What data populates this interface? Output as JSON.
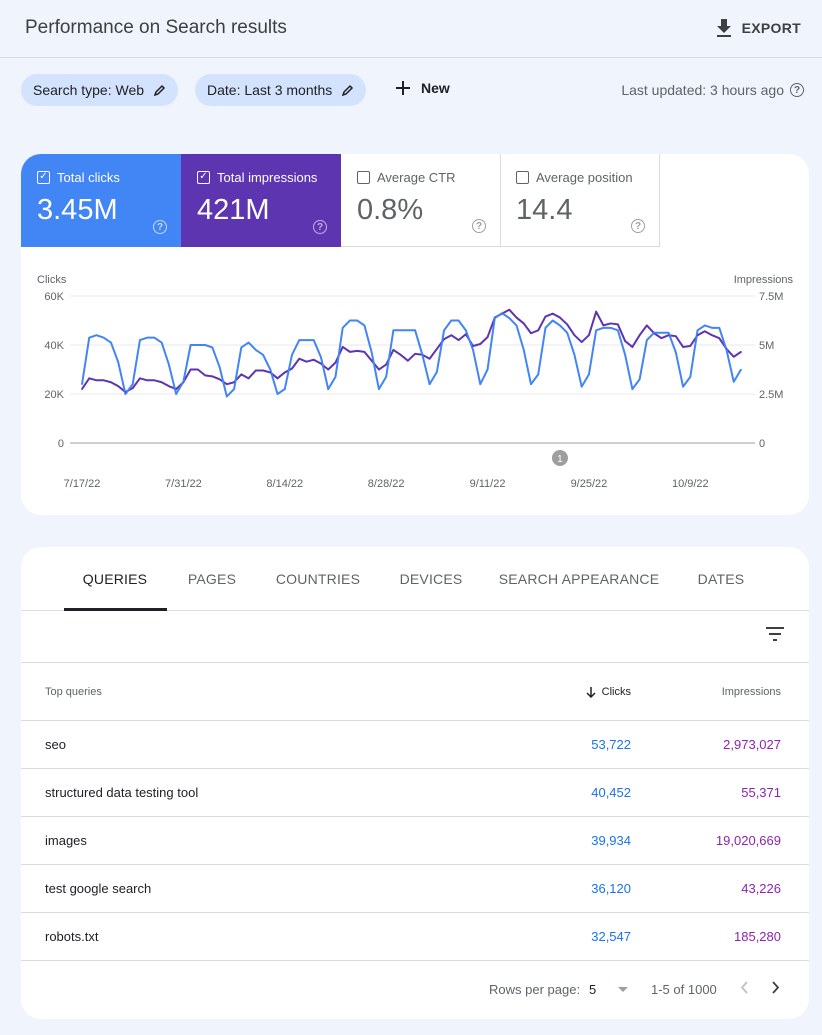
{
  "header": {
    "title": "Performance on Search results",
    "export_label": "EXPORT"
  },
  "filters": {
    "search_type": "Search type: Web",
    "date": "Date: Last 3 months",
    "new_label": "New",
    "last_updated": "Last updated: 3 hours ago"
  },
  "metrics": [
    {
      "label": "Total clicks",
      "value": "3.45M",
      "checked": true,
      "color": "#4285f4"
    },
    {
      "label": "Total impressions",
      "value": "421M",
      "checked": true,
      "color": "#5e35b1"
    },
    {
      "label": "Average CTR",
      "value": "0.8%",
      "checked": false
    },
    {
      "label": "Average position",
      "value": "14.4",
      "checked": false
    }
  ],
  "chart_data": {
    "type": "line",
    "ylabel_left": "Clicks",
    "ylabel_right": "Impressions",
    "yticks_left": [
      "0",
      "20K",
      "40K",
      "60K"
    ],
    "ylim_left": [
      0,
      60000
    ],
    "yticks_right": [
      "0",
      "2.5M",
      "5M",
      "7.5M"
    ],
    "ylim_right": [
      0,
      7500000
    ],
    "xtick_labels": [
      "7/17/22",
      "7/31/22",
      "8/14/22",
      "8/28/22",
      "9/11/22",
      "9/25/22",
      "10/9/22"
    ],
    "grid": true,
    "annotations": [
      {
        "label": "1",
        "date": "9/21/22"
      }
    ],
    "x": [
      "7/17/22",
      "7/18/22",
      "7/19/22",
      "7/20/22",
      "7/21/22",
      "7/22/22",
      "7/23/22",
      "7/24/22",
      "7/25/22",
      "7/26/22",
      "7/27/22",
      "7/28/22",
      "7/29/22",
      "7/30/22",
      "7/31/22",
      "8/1/22",
      "8/2/22",
      "8/3/22",
      "8/4/22",
      "8/5/22",
      "8/6/22",
      "8/7/22",
      "8/8/22",
      "8/9/22",
      "8/10/22",
      "8/11/22",
      "8/12/22",
      "8/13/22",
      "8/14/22",
      "8/15/22",
      "8/16/22",
      "8/17/22",
      "8/18/22",
      "8/19/22",
      "8/20/22",
      "8/21/22",
      "8/22/22",
      "8/23/22",
      "8/24/22",
      "8/25/22",
      "8/26/22",
      "8/27/22",
      "8/28/22",
      "8/29/22",
      "8/30/22",
      "8/31/22",
      "9/1/22",
      "9/2/22",
      "9/3/22",
      "9/4/22",
      "9/5/22",
      "9/6/22",
      "9/7/22",
      "9/8/22",
      "9/9/22",
      "9/10/22",
      "9/11/22",
      "9/12/22",
      "9/13/22",
      "9/14/22",
      "9/15/22",
      "9/16/22",
      "9/17/22",
      "9/18/22",
      "9/19/22",
      "9/20/22",
      "9/21/22",
      "9/22/22",
      "9/23/22",
      "9/24/22",
      "9/25/22",
      "9/26/22",
      "9/27/22",
      "9/28/22",
      "9/29/22",
      "9/30/22",
      "10/1/22",
      "10/2/22",
      "10/3/22",
      "10/4/22",
      "10/5/22",
      "10/6/22",
      "10/7/22",
      "10/8/22",
      "10/9/22",
      "10/10/22",
      "10/11/22",
      "10/12/22",
      "10/13/22",
      "10/14/22",
      "10/15/22",
      "10/16/22"
    ],
    "series": [
      {
        "name": "Clicks",
        "axis": "left",
        "color": "#4285f4",
        "values": [
          24000,
          43000,
          44000,
          43000,
          41000,
          33000,
          20000,
          24000,
          42000,
          43000,
          43000,
          41000,
          32000,
          20000,
          25000,
          40000,
          40000,
          40000,
          39000,
          31000,
          19000,
          22000,
          39000,
          41000,
          38000,
          36000,
          30000,
          20000,
          22000,
          36000,
          42000,
          42000,
          42000,
          35000,
          22000,
          27000,
          47000,
          50000,
          50000,
          48000,
          37000,
          22000,
          27000,
          46000,
          46000,
          46000,
          46000,
          36000,
          24000,
          29000,
          46000,
          50000,
          50000,
          46000,
          38000,
          24000,
          30000,
          51000,
          53000,
          51000,
          48000,
          38000,
          24000,
          28000,
          47000,
          50000,
          48000,
          45000,
          36000,
          23000,
          28000,
          46000,
          47000,
          47000,
          46000,
          36000,
          22000,
          26000,
          42000,
          45000,
          45000,
          45000,
          37000,
          23000,
          27000,
          46000,
          48000,
          47000,
          47000,
          38000,
          25000,
          30000
        ]
      },
      {
        "name": "Impressions",
        "axis": "right",
        "color": "#5e35b1",
        "values": [
          2750000,
          3300000,
          3200000,
          3200000,
          3100000,
          2900000,
          2600000,
          2800000,
          3300000,
          3200000,
          3200000,
          3100000,
          2900000,
          2750000,
          3100000,
          3750000,
          3750000,
          3450000,
          3400000,
          3250000,
          3000000,
          3100000,
          3500000,
          3300000,
          3700000,
          3700000,
          3600000,
          3300000,
          3600000,
          3800000,
          4300000,
          4150000,
          4250000,
          4050000,
          3750000,
          4100000,
          4900000,
          4650000,
          4700000,
          4650000,
          4200000,
          3750000,
          4000000,
          4750000,
          4500000,
          4200000,
          4550000,
          4500000,
          4300000,
          4800000,
          5300000,
          5500000,
          5250000,
          5550000,
          4950000,
          5050000,
          5400000,
          6400000,
          6600000,
          6800000,
          6400000,
          6100000,
          5600000,
          5750000,
          6450000,
          6600000,
          6400000,
          6050000,
          5500000,
          5150000,
          5500000,
          6700000,
          6000000,
          6100000,
          6050000,
          5200000,
          4900000,
          5500000,
          6000000,
          5600000,
          5350000,
          5500000,
          5450000,
          4900000,
          4950000,
          5500000,
          5700000,
          5500000,
          5350000,
          4800000,
          4400000,
          4650000
        ]
      }
    ]
  },
  "tabs": [
    "QUERIES",
    "PAGES",
    "COUNTRIES",
    "DEVICES",
    "SEARCH APPEARANCE",
    "DATES"
  ],
  "table": {
    "headers": {
      "query": "Top queries",
      "clicks": "Clicks",
      "impressions": "Impressions"
    },
    "rows": [
      {
        "query": "seo",
        "clicks": "53,722",
        "impressions": "2,973,027"
      },
      {
        "query": "structured data testing tool",
        "clicks": "40,452",
        "impressions": "55,371"
      },
      {
        "query": "images",
        "clicks": "39,934",
        "impressions": "19,020,669"
      },
      {
        "query": "test google search",
        "clicks": "36,120",
        "impressions": "43,226"
      },
      {
        "query": "robots.txt",
        "clicks": "32,547",
        "impressions": "185,280"
      }
    ],
    "rows_per_page_label": "Rows per page:",
    "rows_per_page": "5",
    "range": "1-5 of 1000"
  },
  "colors": {
    "background": "#f0f4fc",
    "chip": "#d3e3fd",
    "clicks": "#1a73e8",
    "impressions": "#8e24aa"
  }
}
